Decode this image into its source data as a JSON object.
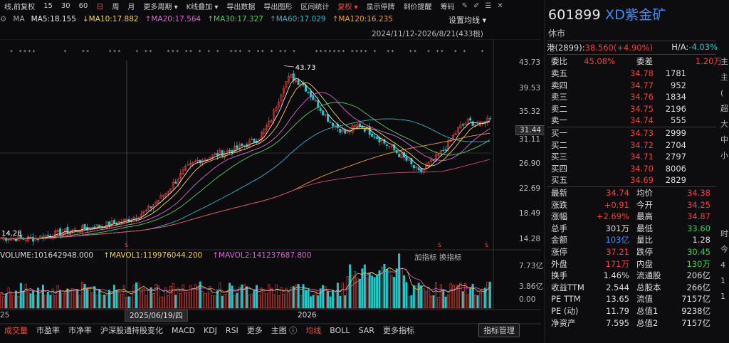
{
  "toolbar": {
    "items": [
      "线,前复权",
      "15",
      "30",
      "60",
      "日",
      "周",
      "月",
      "更多周期 ▾",
      "K线叠加 ▾",
      "导出数据",
      "导出图形",
      "区间统计",
      "复权 ▾",
      "显示停牌",
      "到价提醒",
      "筹码"
    ],
    "selected_index": 4,
    "red_index": 12
  },
  "ma_bar": {
    "label": "MA",
    "ma5": "MA5:18.155",
    "ma10": "↓MA10:17.882",
    "ma20": "↑MA20:17.564",
    "ma30": "↑MA30:17.327",
    "ma60": "↑MA60:17.029",
    "ma120": "↑MA120:16.235",
    "settings": "设置均线 ▾",
    "range": "2024/11/12-2026/8/21(433根)"
  },
  "colors": {
    "up": "#f0403a",
    "down": "#22c7c7",
    "ma5": "#e8e8e8",
    "ma10": "#f2d14a",
    "ma20": "#d866d8",
    "ma30": "#4fd05a",
    "ma60": "#2fb6c9",
    "ma120": "#f09a2e",
    "ma250": "#c9506e",
    "accent": "#3d8bff"
  },
  "chart_data": {
    "type": "candlestick",
    "price_axis_ticks": [
      "43.73",
      "39.53",
      "35.32",
      "31.11",
      "26.90",
      "22.69",
      "18.49",
      "14.28"
    ],
    "price_range": [
      14.28,
      43.73
    ],
    "current_price": "31.44",
    "high_marker": "43.73",
    "low_marker": "14.28",
    "volume_axis_ticks": [
      "7.73亿",
      "3.86亿",
      "0.00"
    ],
    "x_ticks": [
      "25",
      "2026"
    ],
    "crosshair_date": "2025/06/19/四",
    "volume_labels": {
      "volume": "VOLUME:101642948.000",
      "mavol1": "↑MAVOL1:119976044.200",
      "mavol2": "↑MAVOL2:141237687.800"
    },
    "indicator_buttons": "加指标 换指标"
  },
  "bottom_bar": {
    "items": [
      "成交量",
      "市盈率",
      "市净率",
      "沪深股通持股变化",
      "MACD",
      "KDJ",
      "RSI",
      "更多",
      "主图 ⓘ",
      "均线",
      "BOLL",
      "SAR",
      "更多指标"
    ],
    "manage": "指标管理"
  },
  "quote": {
    "code": "601899",
    "name": "XD紫金矿",
    "status": "休市",
    "hk_label": "港(2899):",
    "hk_value": "38.560(+4.90%)",
    "ha_label": "H/A:",
    "ha_value": "-4.03%",
    "weibi_label": "委比",
    "weibi_value": "45.08%",
    "weicha_label": "委差",
    "weicha_value": "1.20万",
    "asks": [
      {
        "label": "卖五",
        "price": "34.78",
        "vol": "1781"
      },
      {
        "label": "卖四",
        "price": "34.77",
        "vol": "952"
      },
      {
        "label": "卖三",
        "price": "34.76",
        "vol": "1834"
      },
      {
        "label": "卖二",
        "price": "34.75",
        "vol": "2196"
      },
      {
        "label": "卖一",
        "price": "34.74",
        "vol": "555"
      }
    ],
    "bids": [
      {
        "label": "买一",
        "price": "34.73",
        "vol": "2999"
      },
      {
        "label": "买二",
        "price": "34.72",
        "vol": "2704"
      },
      {
        "label": "买三",
        "price": "34.71",
        "vol": "2797"
      },
      {
        "label": "买四",
        "price": "34.70",
        "vol": "8006"
      },
      {
        "label": "买五",
        "price": "34.69",
        "vol": "2829"
      }
    ],
    "stats": [
      {
        "k1": "最新",
        "v1": "34.74",
        "c1": "up",
        "k2": "均价",
        "v2": "34.38",
        "c2": "up"
      },
      {
        "k1": "涨跌",
        "v1": "+0.91",
        "c1": "up",
        "k2": "今开",
        "v2": "34.25",
        "c2": "up"
      },
      {
        "k1": "涨幅",
        "v1": "+2.69%",
        "c1": "up",
        "k2": "最高",
        "v2": "34.87",
        "c2": "up"
      },
      {
        "k1": "总手",
        "v1": "301万",
        "c1": "w",
        "k2": "最低",
        "v2": "33.60",
        "c2": "down"
      },
      {
        "k1": "金额",
        "v1": "103亿",
        "c1": "blue",
        "k2": "量比",
        "v2": "1.28",
        "c2": "w"
      },
      {
        "k1": "涨停",
        "v1": "37.21",
        "c1": "up",
        "k2": "跌停",
        "v2": "30.45",
        "c2": "down"
      },
      {
        "k1": "外盘",
        "v1": "171万",
        "c1": "up",
        "k2": "内盘",
        "v2": "130万",
        "c2": "down"
      },
      {
        "k1": "换手",
        "v1": "1.46%",
        "c1": "w",
        "k2": "流通股",
        "v2": "206亿",
        "c2": "w"
      },
      {
        "k1": "收益TTM",
        "v1": "2.544",
        "c1": "w",
        "k2": "总股本",
        "v2": "266亿",
        "c2": "w"
      },
      {
        "k1": "PE TTM",
        "v1": "13.65",
        "c1": "w",
        "k2": "流值",
        "v2": "7157亿",
        "c2": "w"
      },
      {
        "k1": "PE (动)",
        "v1": "11.79",
        "c1": "w",
        "k2": "总值1",
        "v2": "9238亿",
        "c2": "w"
      },
      {
        "k1": "净资产",
        "v1": "7.595",
        "c1": "w",
        "k2": "总值2",
        "v2": "7157亿",
        "c2": "w"
      }
    ]
  }
}
